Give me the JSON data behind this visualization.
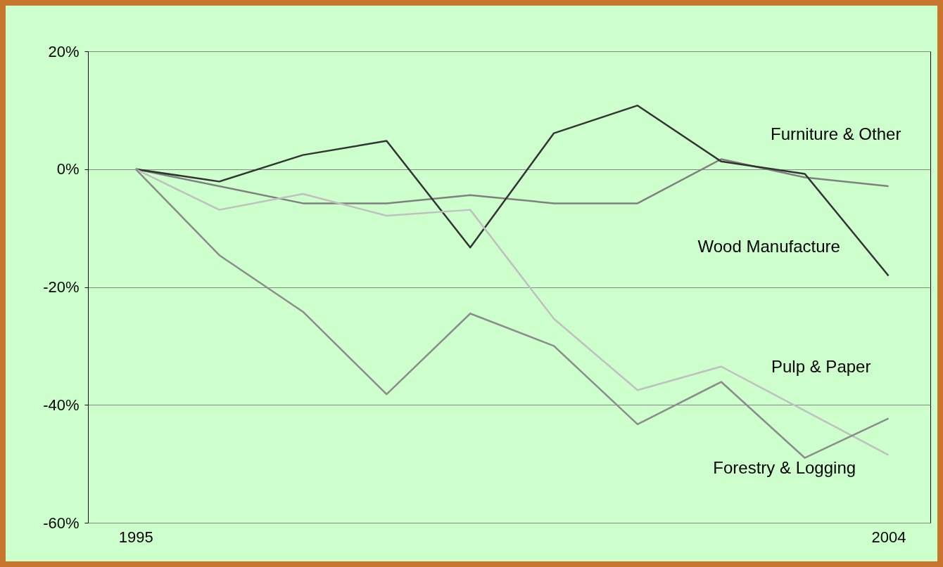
{
  "chart_data": {
    "type": "line",
    "x": [
      1995,
      1996,
      1997,
      1998,
      1999,
      2000,
      2001,
      2002,
      2003,
      2004
    ],
    "series": [
      {
        "name": "Furniture & Other",
        "color": "#808080",
        "values": [
          0,
          -2.9,
          -5.8,
          -5.8,
          -4.4,
          -5.8,
          -5.8,
          1.7,
          -1.4,
          -2.9
        ]
      },
      {
        "name": "Wood Manufacture",
        "color": "#333333",
        "values": [
          0,
          -2.1,
          2.4,
          4.8,
          -13.3,
          6.1,
          10.8,
          1.3,
          -0.8,
          -18.1
        ]
      },
      {
        "name": "Pulp & Paper",
        "color": "#c0c0c0",
        "values": [
          0,
          -6.9,
          -4.2,
          -7.9,
          -6.9,
          -25.4,
          -37.5,
          -33.5,
          -41,
          -48.5
        ]
      },
      {
        "name": "Forestry & Logging",
        "color": "#8c8c8c",
        "values": [
          0,
          -14.6,
          -24.2,
          -38.2,
          -24.5,
          -30,
          -43.3,
          -36.1,
          -49,
          -42.3
        ]
      }
    ],
    "xlim": [
      1994.43,
      2004.5
    ],
    "xticks": [
      1995,
      2004
    ],
    "ylim": [
      -60,
      20
    ],
    "yticks": [
      {
        "value": -60,
        "label": "-60%"
      },
      {
        "value": -40,
        "label": "-40%"
      },
      {
        "value": -20,
        "label": "-20%"
      },
      {
        "value": 0,
        "label": "0%"
      },
      {
        "value": 20,
        "label": "20%"
      }
    ],
    "grid": "y",
    "legend": false,
    "marker": "none",
    "line_style": "solid"
  }
}
